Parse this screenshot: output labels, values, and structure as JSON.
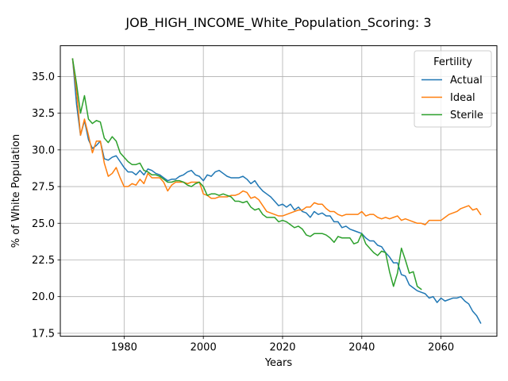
{
  "chart_data": {
    "type": "line",
    "title": "JOB_HIGH_INCOME_White_Population_Scoring: 3",
    "xlabel": "Years",
    "ylabel": "% of White Population",
    "xlim": [
      1963.9,
      2074.1
    ],
    "ylim": [
      17.3,
      37.1
    ],
    "x_ticks": [
      1980,
      2000,
      2020,
      2040,
      2060
    ],
    "x_tick_labels": [
      "1980",
      "2000",
      "2020",
      "2040",
      "2060"
    ],
    "y_ticks": [
      17.5,
      20.0,
      22.5,
      25.0,
      27.5,
      30.0,
      32.5,
      35.0
    ],
    "y_tick_labels": [
      "17.5",
      "20.0",
      "22.5",
      "25.0",
      "27.5",
      "30.0",
      "32.5",
      "35.0"
    ],
    "grid": true,
    "legend": {
      "title": "Fertility",
      "placement": "top-right"
    },
    "series": [
      {
        "name": "Actual",
        "color": "#1f77b4",
        "x": [
          1967,
          1968,
          1969,
          1970,
          1971,
          1972,
          1973,
          1974,
          1975,
          1976,
          1977,
          1978,
          1979,
          1980,
          1981,
          1982,
          1983,
          1984,
          1985,
          1986,
          1987,
          1988,
          1989,
          1990,
          1991,
          1992,
          1993,
          1994,
          1995,
          1996,
          1997,
          1998,
          1999,
          2000,
          2001,
          2002,
          2003,
          2004,
          2005,
          2006,
          2007,
          2008,
          2009,
          2010,
          2011,
          2012,
          2013,
          2014,
          2015,
          2016,
          2017,
          2018,
          2019,
          2020,
          2021,
          2022,
          2023,
          2024,
          2025,
          2026,
          2027,
          2028,
          2029,
          2030,
          2031,
          2032,
          2033,
          2034,
          2035,
          2036,
          2037,
          2038,
          2039,
          2040,
          2041,
          2042,
          2043,
          2044,
          2045,
          2046,
          2047,
          2048,
          2049,
          2050,
          2051,
          2052,
          2053,
          2054,
          2055,
          2056,
          2057,
          2058,
          2059,
          2060,
          2061,
          2062,
          2063,
          2064,
          2065,
          2066,
          2067,
          2068,
          2069,
          2070
        ],
        "values": [
          36.2,
          33.1,
          31.0,
          32.0,
          30.7,
          30.1,
          30.3,
          30.6,
          29.4,
          29.3,
          29.5,
          29.6,
          29.2,
          28.8,
          28.5,
          28.5,
          28.3,
          28.6,
          28.3,
          28.7,
          28.6,
          28.4,
          28.3,
          28.1,
          27.9,
          28.0,
          28.0,
          28.2,
          28.3,
          28.5,
          28.6,
          28.3,
          28.2,
          27.9,
          28.3,
          28.2,
          28.5,
          28.6,
          28.4,
          28.2,
          28.1,
          28.1,
          28.1,
          28.2,
          28.0,
          27.7,
          27.9,
          27.5,
          27.2,
          27.0,
          26.8,
          26.5,
          26.2,
          26.3,
          26.1,
          26.3,
          25.9,
          26.1,
          25.8,
          25.7,
          25.4,
          25.8,
          25.6,
          25.7,
          25.5,
          25.5,
          25.1,
          25.1,
          24.7,
          24.8,
          24.6,
          24.5,
          24.4,
          24.3,
          24.0,
          23.8,
          23.8,
          23.5,
          23.4,
          23.0,
          22.7,
          22.3,
          22.3,
          21.5,
          21.4,
          20.8,
          20.6,
          20.4,
          20.3,
          20.2,
          19.9,
          20.0,
          19.6,
          19.9,
          19.7,
          19.8,
          19.9,
          19.9,
          20.0,
          19.7,
          19.5,
          19.0,
          18.7,
          18.2
        ]
      },
      {
        "name": "Ideal",
        "color": "#ff7f0e",
        "x": [
          1967,
          1968,
          1969,
          1970,
          1971,
          1972,
          1973,
          1974,
          1975,
          1976,
          1977,
          1978,
          1979,
          1980,
          1981,
          1982,
          1983,
          1984,
          1985,
          1986,
          1987,
          1988,
          1989,
          1990,
          1991,
          1992,
          1993,
          1994,
          1995,
          1996,
          1997,
          1998,
          1999,
          2000,
          2001,
          2002,
          2003,
          2004,
          2005,
          2006,
          2007,
          2008,
          2009,
          2010,
          2011,
          2012,
          2013,
          2014,
          2015,
          2016,
          2017,
          2018,
          2019,
          2020,
          2021,
          2022,
          2023,
          2024,
          2025,
          2026,
          2027,
          2028,
          2029,
          2030,
          2031,
          2032,
          2033,
          2034,
          2035,
          2036,
          2037,
          2038,
          2039,
          2040,
          2041,
          2042,
          2043,
          2044,
          2045,
          2046,
          2047,
          2048,
          2049,
          2050,
          2051,
          2052,
          2053,
          2054,
          2055,
          2056,
          2057,
          2058,
          2059,
          2060,
          2061,
          2062,
          2063,
          2064,
          2065,
          2066,
          2067,
          2068,
          2069,
          2070
        ],
        "values": [
          36.2,
          34.0,
          31.0,
          32.1,
          31.0,
          29.8,
          30.6,
          30.6,
          29.1,
          28.2,
          28.4,
          28.8,
          28.1,
          27.5,
          27.5,
          27.7,
          27.6,
          28.0,
          27.7,
          28.4,
          28.1,
          28.1,
          28.1,
          27.8,
          27.2,
          27.6,
          27.8,
          27.8,
          27.8,
          27.7,
          27.8,
          27.8,
          27.8,
          27.0,
          26.9,
          26.7,
          26.7,
          26.8,
          26.8,
          26.8,
          26.9,
          26.9,
          27.0,
          27.2,
          27.1,
          26.7,
          26.8,
          26.6,
          26.2,
          25.8,
          25.7,
          25.6,
          25.5,
          25.5,
          25.6,
          25.7,
          25.8,
          25.9,
          25.9,
          26.1,
          26.1,
          26.4,
          26.3,
          26.3,
          26.0,
          25.8,
          25.8,
          25.6,
          25.5,
          25.6,
          25.6,
          25.6,
          25.6,
          25.8,
          25.5,
          25.6,
          25.6,
          25.4,
          25.3,
          25.4,
          25.3,
          25.4,
          25.5,
          25.2,
          25.3,
          25.2,
          25.1,
          25.0,
          25.0,
          24.9,
          25.2,
          25.2,
          25.2,
          25.2,
          25.4,
          25.6,
          25.7,
          25.8,
          26.0,
          26.1,
          26.2,
          25.9,
          26.0,
          25.6
        ]
      },
      {
        "name": "Sterile",
        "color": "#2ca02c",
        "x": [
          1967,
          1968,
          1969,
          1970,
          1971,
          1972,
          1973,
          1974,
          1975,
          1976,
          1977,
          1978,
          1979,
          1980,
          1981,
          1982,
          1983,
          1984,
          1985,
          1986,
          1987,
          1988,
          1989,
          1990,
          1991,
          1992,
          1993,
          1994,
          1995,
          1996,
          1997,
          1998,
          1999,
          2000,
          2001,
          2002,
          2003,
          2004,
          2005,
          2006,
          2007,
          2008,
          2009,
          2010,
          2011,
          2012,
          2013,
          2014,
          2015,
          2016,
          2017,
          2018,
          2019,
          2020,
          2021,
          2022,
          2023,
          2024,
          2025,
          2026,
          2027,
          2028,
          2029,
          2030,
          2031,
          2032,
          2033,
          2034,
          2035,
          2036,
          2037,
          2038,
          2039,
          2040,
          2041,
          2042,
          2043,
          2044,
          2045,
          2046,
          2047,
          2048,
          2049,
          2050,
          2051,
          2052,
          2053,
          2054,
          2055
        ],
        "values": [
          36.2,
          34.5,
          32.5,
          33.7,
          32.1,
          31.8,
          32.0,
          31.9,
          30.8,
          30.5,
          30.9,
          30.6,
          29.8,
          29.5,
          29.2,
          29.0,
          29.0,
          29.1,
          28.6,
          28.5,
          28.3,
          28.3,
          28.2,
          28.0,
          27.8,
          27.8,
          27.9,
          27.9,
          27.8,
          27.6,
          27.5,
          27.7,
          27.8,
          27.5,
          26.9,
          27.0,
          27.0,
          26.9,
          27.0,
          26.9,
          26.8,
          26.5,
          26.5,
          26.4,
          26.5,
          26.1,
          25.9,
          26.0,
          25.6,
          25.4,
          25.4,
          25.4,
          25.1,
          25.2,
          25.1,
          24.9,
          24.7,
          24.8,
          24.6,
          24.2,
          24.1,
          24.3,
          24.3,
          24.3,
          24.2,
          24.0,
          23.7,
          24.1,
          24.0,
          24.0,
          24.0,
          23.6,
          23.7,
          24.3,
          23.6,
          23.3,
          23.0,
          22.8,
          23.1,
          23.0,
          21.7,
          20.7,
          21.6,
          23.3,
          22.5,
          21.6,
          21.7,
          20.7,
          20.5
        ]
      }
    ]
  }
}
